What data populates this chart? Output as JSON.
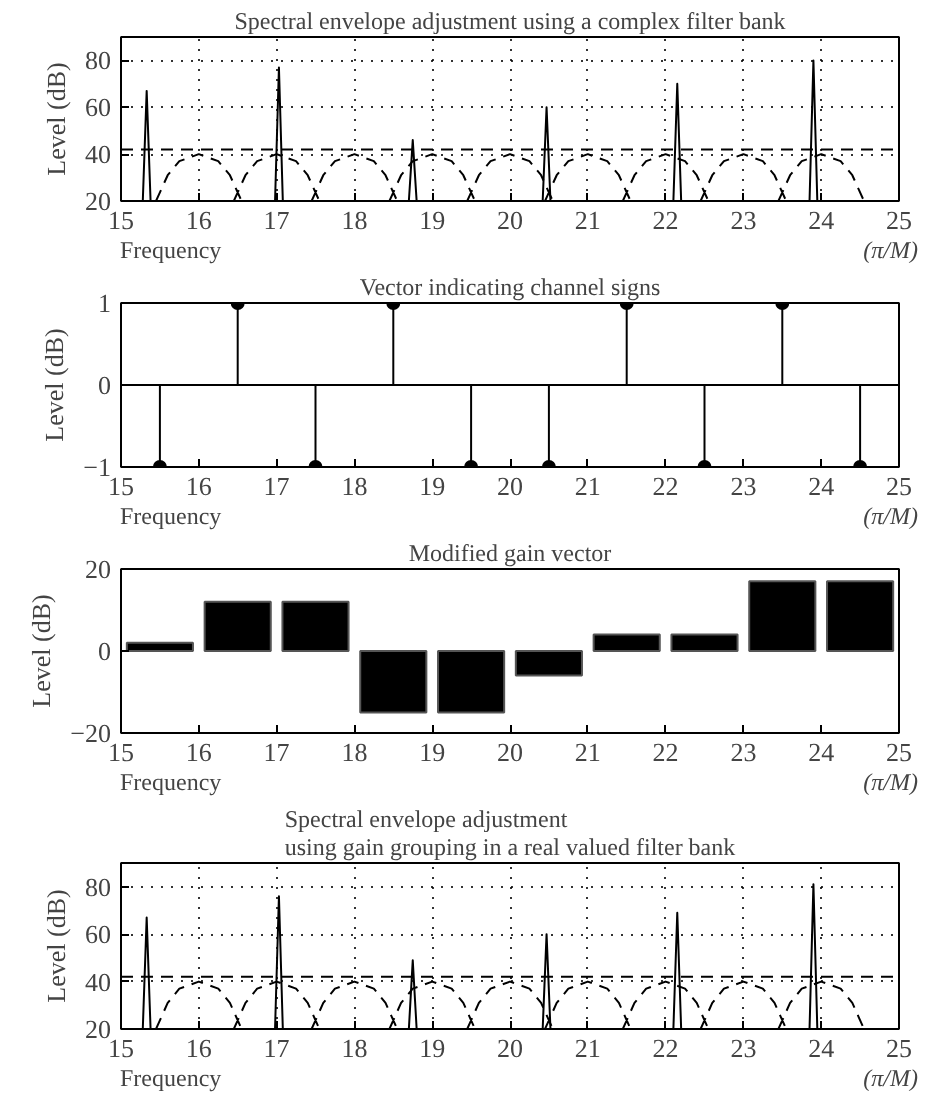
{
  "chart_data": [
    {
      "type": "line",
      "title": "Spectral envelope adjustment using a complex filter bank",
      "xlabel": "Frequency",
      "ylabel": "Level (dB)",
      "annotations": [
        "(π/M)"
      ],
      "xlim": [
        15,
        25
      ],
      "xticks": [
        15,
        16,
        17,
        18,
        19,
        20,
        21,
        22,
        23,
        24,
        25
      ],
      "ylim": [
        20,
        90
      ],
      "yticks": [
        20,
        40,
        60,
        80
      ],
      "grid": true,
      "marker": "none",
      "series": [
        {
          "color": "#000000",
          "line_style": "solid",
          "x": [
            15.28,
            15.33,
            15.38,
            null,
            16.98,
            17.03,
            17.08,
            null,
            18.7,
            18.75,
            18.8,
            null,
            20.42,
            20.47,
            20.52,
            null,
            22.1,
            22.15,
            22.2,
            null,
            23.85,
            23.9,
            23.95
          ],
          "values": [
            20,
            67,
            20,
            null,
            20,
            77,
            20,
            null,
            20,
            46,
            20,
            null,
            20,
            60,
            20,
            null,
            20,
            70,
            20,
            null,
            20,
            80,
            20
          ]
        },
        {
          "color": "#000000",
          "line_style": "dashed",
          "x": [
            15,
            25
          ],
          "values": [
            42,
            42
          ]
        },
        {
          "color": "#000000",
          "line_style": "dashed",
          "x": [
            15.45,
            15.6,
            15.75,
            16,
            16.25,
            16.4,
            16.55,
            null,
            16.45,
            16.6,
            16.75,
            17,
            17.25,
            17.4,
            17.55,
            null,
            17.45,
            17.6,
            17.75,
            18,
            18.25,
            18.4,
            18.55,
            null,
            18.45,
            18.6,
            18.75,
            19,
            19.25,
            19.4,
            19.55,
            null,
            19.45,
            19.6,
            19.75,
            20,
            20.25,
            20.4,
            20.55,
            null,
            20.45,
            20.6,
            20.75,
            21,
            21.25,
            21.4,
            21.55,
            null,
            21.45,
            21.6,
            21.75,
            22,
            22.25,
            22.4,
            22.55,
            null,
            22.45,
            22.6,
            22.75,
            23,
            23.25,
            23.4,
            23.55,
            null,
            23.45,
            23.6,
            23.75,
            24,
            24.25,
            24.4,
            24.55
          ],
          "values": [
            20,
            31,
            37,
            40,
            37,
            31,
            20,
            null,
            20,
            31,
            37,
            40,
            37,
            31,
            20,
            null,
            20,
            31,
            37,
            40,
            37,
            31,
            20,
            null,
            20,
            31,
            37,
            40,
            37,
            31,
            20,
            null,
            20,
            31,
            37,
            40,
            37,
            31,
            20,
            null,
            20,
            31,
            37,
            40,
            37,
            31,
            20,
            null,
            20,
            31,
            37,
            40,
            37,
            31,
            20,
            null,
            20,
            31,
            37,
            40,
            37,
            31,
            20,
            null,
            20,
            31,
            37,
            40,
            37,
            31,
            20
          ]
        }
      ]
    },
    {
      "type": "lollipop",
      "title": "Vector indicating channel signs",
      "xlabel": "Frequency",
      "ylabel": "Level (dB)",
      "annotations": [
        "(π/M)"
      ],
      "xlim": [
        15,
        25
      ],
      "xticks": [
        15,
        16,
        17,
        18,
        19,
        20,
        21,
        22,
        23,
        24,
        25
      ],
      "ylim": [
        -1,
        1
      ],
      "yticks": [
        -1,
        0,
        1
      ],
      "marker": "circle",
      "series": [
        {
          "color": "#000000",
          "x": [
            15.5,
            16.5,
            17.5,
            18.5,
            19.5,
            20.5,
            21.5,
            22.5,
            23.5,
            24.5
          ],
          "values": [
            -1,
            1,
            -1,
            1,
            -1,
            -1,
            1,
            -1,
            1,
            -1
          ]
        }
      ]
    },
    {
      "type": "bar",
      "title": "Modified gain vector",
      "xlabel": "Frequency",
      "ylabel": "Level (dB)",
      "annotations": [
        "(π/M)"
      ],
      "xlim": [
        15,
        25
      ],
      "xticks": [
        15,
        16,
        17,
        18,
        19,
        20,
        21,
        22,
        23,
        24,
        25
      ],
      "ylim": [
        -20,
        20
      ],
      "yticks": [
        -20,
        0,
        20
      ],
      "series": [
        {
          "color": "#000000",
          "x": [
            15.5,
            16.5,
            17.5,
            18.5,
            19.5,
            20.5,
            21.5,
            22.5,
            23.5,
            24.5
          ],
          "values": [
            2,
            12,
            12,
            -15,
            -15,
            -6,
            4,
            4,
            17,
            17
          ]
        }
      ]
    },
    {
      "type": "line",
      "title": "Spectral envelope adjustment\nusing gain grouping in a real valued filter bank",
      "xlabel": "Frequency",
      "ylabel": "Level (dB)",
      "annotations": [
        "(π/M)"
      ],
      "xlim": [
        15,
        25
      ],
      "xticks": [
        15,
        16,
        17,
        18,
        19,
        20,
        21,
        22,
        23,
        24,
        25
      ],
      "ylim": [
        20,
        90
      ],
      "yticks": [
        20,
        40,
        60,
        80
      ],
      "grid": true,
      "marker": "none",
      "series": [
        {
          "color": "#000000",
          "line_style": "solid",
          "x": [
            15.28,
            15.33,
            15.38,
            null,
            16.98,
            17.03,
            17.08,
            null,
            18.7,
            18.75,
            18.8,
            null,
            20.42,
            20.47,
            20.52,
            null,
            22.1,
            22.15,
            22.2,
            null,
            23.85,
            23.9,
            23.95
          ],
          "values": [
            20,
            67,
            20,
            null,
            20,
            76,
            20,
            null,
            20,
            49,
            20,
            null,
            20,
            60,
            20,
            null,
            20,
            69,
            20,
            null,
            20,
            81,
            20
          ]
        },
        {
          "color": "#000000",
          "line_style": "dashed",
          "x": [
            15,
            25
          ],
          "values": [
            42,
            42
          ]
        },
        {
          "color": "#000000",
          "line_style": "dashed",
          "x": [
            15.45,
            15.6,
            15.75,
            16,
            16.25,
            16.4,
            16.55,
            null,
            16.45,
            16.6,
            16.75,
            17,
            17.25,
            17.4,
            17.55,
            null,
            17.45,
            17.6,
            17.75,
            18,
            18.25,
            18.4,
            18.55,
            null,
            18.45,
            18.6,
            18.75,
            19,
            19.25,
            19.4,
            19.55,
            null,
            19.45,
            19.6,
            19.75,
            20,
            20.25,
            20.4,
            20.55,
            null,
            20.45,
            20.6,
            20.75,
            21,
            21.25,
            21.4,
            21.55,
            null,
            21.45,
            21.6,
            21.75,
            22,
            22.25,
            22.4,
            22.55,
            null,
            22.45,
            22.6,
            22.75,
            23,
            23.25,
            23.4,
            23.55,
            null,
            23.45,
            23.6,
            23.75,
            24,
            24.25,
            24.4,
            24.55
          ],
          "values": [
            20,
            31,
            37,
            40,
            37,
            31,
            20,
            null,
            20,
            31,
            37,
            40,
            37,
            31,
            20,
            null,
            20,
            31,
            37,
            40,
            37,
            31,
            20,
            null,
            20,
            31,
            37,
            40,
            37,
            31,
            20,
            null,
            20,
            31,
            37,
            40,
            37,
            31,
            20,
            null,
            20,
            31,
            37,
            40,
            37,
            31,
            20,
            null,
            20,
            31,
            37,
            40,
            37,
            31,
            20,
            null,
            20,
            31,
            37,
            40,
            37,
            31,
            20,
            null,
            20,
            31,
            37,
            40,
            37,
            31,
            20
          ]
        }
      ]
    }
  ]
}
